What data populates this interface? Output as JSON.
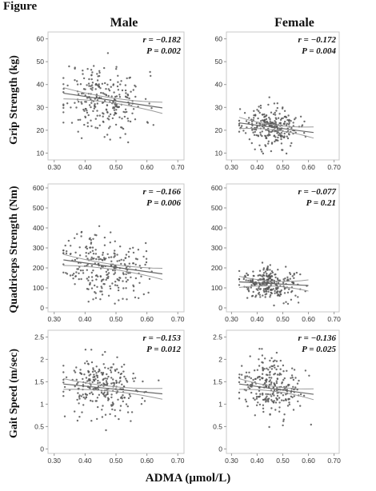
{
  "figure_title": "Figure",
  "col_titles": [
    "Male",
    "Female"
  ],
  "row_labels": [
    "Grip Strength (kg)",
    "Quadriceps Strength (Nm)",
    "Gait Speed (m/sec)"
  ],
  "shared_xlabel": "ADMA (μmol/L)",
  "colors": {
    "point": "#555555",
    "line": "#666666",
    "ci": "#9a9a9a",
    "frame": "#c8c8c8"
  },
  "chart_data": [
    {
      "type": "scatter",
      "row": 0,
      "col": 0,
      "xlim": [
        0.28,
        0.72
      ],
      "ylim": [
        7,
        63
      ],
      "xticks": [
        "0.30",
        "0.40",
        "0.50",
        "0.60",
        "0.70"
      ],
      "yticks": [
        "10",
        "20",
        "30",
        "40",
        "50",
        "60"
      ],
      "r": -0.182,
      "p": "0.002",
      "stat_r": "r = −0.182",
      "stat_p": "P = 0.002",
      "fit": {
        "x0": 0.33,
        "y0": 36.2,
        "x1": 0.65,
        "y1": 29.8
      },
      "cloud": {
        "xmean": 0.46,
        "xsd": 0.065,
        "ysd": 7.5,
        "n": 260,
        "xmin": 0.33,
        "xmax": 0.65,
        "seed": 11
      }
    },
    {
      "type": "scatter",
      "row": 0,
      "col": 1,
      "xlim": [
        0.28,
        0.72
      ],
      "ylim": [
        7,
        63
      ],
      "xticks": [
        "0.30",
        "0.40",
        "0.50",
        "0.60",
        "0.70"
      ],
      "yticks": [
        "10",
        "20",
        "30",
        "40",
        "50",
        "60"
      ],
      "r": -0.172,
      "p": "0.004",
      "stat_r": "r = −0.172",
      "stat_p": "P = 0.004",
      "fit": {
        "x0": 0.33,
        "y0": 23.2,
        "x1": 0.62,
        "y1": 19.0
      },
      "cloud": {
        "xmean": 0.45,
        "xsd": 0.055,
        "ysd": 4.2,
        "n": 260,
        "xmin": 0.33,
        "xmax": 0.61,
        "seed": 23
      }
    },
    {
      "type": "scatter",
      "row": 1,
      "col": 0,
      "xlim": [
        0.28,
        0.72
      ],
      "ylim": [
        -20,
        620
      ],
      "xticks": [
        "0.30",
        "0.40",
        "0.50",
        "0.60",
        "0.70"
      ],
      "yticks": [
        "0",
        "100",
        "200",
        "300",
        "400",
        "500",
        "600"
      ],
      "r": -0.166,
      "p": "0.006",
      "stat_r": "r = −0.166",
      "stat_p": "P = 0.006",
      "fit": {
        "x0": 0.33,
        "y0": 240,
        "x1": 0.65,
        "y1": 170
      },
      "cloud": {
        "xmean": 0.46,
        "xsd": 0.065,
        "ysd": 80,
        "n": 260,
        "xmin": 0.33,
        "xmax": 0.65,
        "seed": 37
      }
    },
    {
      "type": "scatter",
      "row": 1,
      "col": 1,
      "xlim": [
        0.28,
        0.72
      ],
      "ylim": [
        -20,
        620
      ],
      "xticks": [
        "0.30",
        "0.40",
        "0.50",
        "0.60",
        "0.70"
      ],
      "yticks": [
        "0",
        "100",
        "200",
        "300",
        "400",
        "500",
        "600"
      ],
      "r": -0.077,
      "p": "0.21",
      "stat_r": "r = −0.077",
      "stat_p": "P = 0.21",
      "fit": {
        "x0": 0.33,
        "y0": 130,
        "x1": 0.6,
        "y1": 112
      },
      "cloud": {
        "xmean": 0.45,
        "xsd": 0.055,
        "ysd": 38,
        "n": 260,
        "xmin": 0.33,
        "xmax": 0.6,
        "seed": 41
      }
    },
    {
      "type": "scatter",
      "row": 2,
      "col": 0,
      "xlim": [
        0.28,
        0.72
      ],
      "ylim": [
        -0.1,
        2.65
      ],
      "xticks": [
        "0.30",
        "0.40",
        "0.50",
        "0.60",
        "0.70"
      ],
      "yticks": [
        "0",
        "0.5",
        "1",
        "1.5",
        "2",
        "2.5"
      ],
      "r": -0.153,
      "p": "0.012",
      "stat_r": "r = −0.153",
      "stat_p": "P = 0.012",
      "fit": {
        "x0": 0.33,
        "y0": 1.45,
        "x1": 0.65,
        "y1": 1.23
      },
      "cloud": {
        "xmean": 0.46,
        "xsd": 0.065,
        "ysd": 0.33,
        "n": 260,
        "xmin": 0.33,
        "xmax": 0.65,
        "seed": 53
      }
    },
    {
      "type": "scatter",
      "row": 2,
      "col": 1,
      "xlim": [
        0.28,
        0.72
      ],
      "ylim": [
        -0.1,
        2.65
      ],
      "xticks": [
        "0.30",
        "0.40",
        "0.50",
        "0.60",
        "0.70"
      ],
      "yticks": [
        "0",
        "0.5",
        "1",
        "1.5",
        "2",
        "2.5"
      ],
      "r": -0.136,
      "p": "0.025",
      "stat_r": "r = −0.136",
      "stat_p": "P = 0.025",
      "fit": {
        "x0": 0.33,
        "y0": 1.45,
        "x1": 0.62,
        "y1": 1.22
      },
      "cloud": {
        "xmean": 0.45,
        "xsd": 0.055,
        "ysd": 0.32,
        "n": 260,
        "xmin": 0.33,
        "xmax": 0.61,
        "seed": 67
      }
    }
  ]
}
